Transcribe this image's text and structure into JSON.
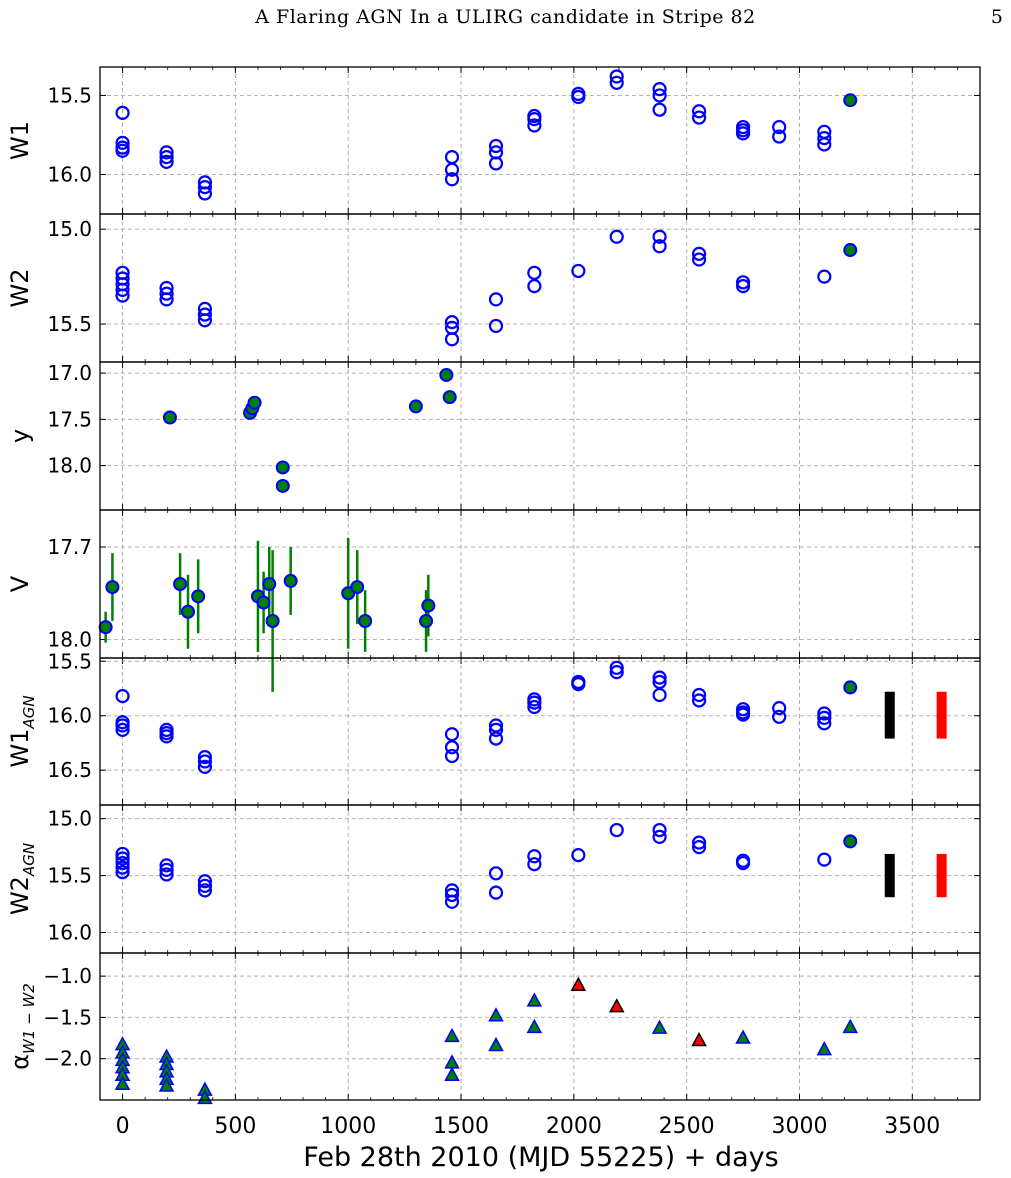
{
  "page": {
    "running_head": "A Flaring AGN In a ULIRG candidate in Stripe 82",
    "page_number": "5"
  },
  "chart_data": {
    "type": "scatter",
    "xlabel": "Feb 28th 2010 (MJD 55225) + days",
    "xlim": [
      -100,
      3800
    ],
    "xticks": [
      0,
      500,
      1000,
      1500,
      2000,
      2500,
      3000,
      3500
    ],
    "grid": true,
    "colors": {
      "open_marker": "#0000ff",
      "filled_marker": "#008000",
      "triangle_face": "#008000",
      "triangle_face_alt": "#ff0000",
      "errorbar": "#008000",
      "bar_black": "#000000",
      "bar_red": "#ff0000"
    },
    "panels": [
      {
        "ylabel": "W1",
        "ylabel_sub": "",
        "ylim": [
          16.25,
          15.32
        ],
        "yticks": [
          "15.5",
          "16.0"
        ],
        "open_circles": [
          [
            0,
            15.61
          ],
          [
            0,
            15.8
          ],
          [
            0,
            15.83
          ],
          [
            0,
            15.85
          ],
          [
            195,
            15.86
          ],
          [
            195,
            15.89
          ],
          [
            195,
            15.92
          ],
          [
            365,
            16.05
          ],
          [
            365,
            16.08
          ],
          [
            365,
            16.12
          ],
          [
            1460,
            15.89
          ],
          [
            1460,
            15.97
          ],
          [
            1460,
            16.03
          ],
          [
            1655,
            15.82
          ],
          [
            1655,
            15.86
          ],
          [
            1655,
            15.93
          ],
          [
            1825,
            15.63
          ],
          [
            1825,
            15.65
          ],
          [
            1825,
            15.69
          ],
          [
            2020,
            15.49
          ],
          [
            2020,
            15.51
          ],
          [
            2190,
            15.38
          ],
          [
            2190,
            15.42
          ],
          [
            2380,
            15.46
          ],
          [
            2380,
            15.5
          ],
          [
            2380,
            15.59
          ],
          [
            2555,
            15.6
          ],
          [
            2555,
            15.64
          ],
          [
            2750,
            15.7
          ],
          [
            2750,
            15.72
          ],
          [
            2750,
            15.74
          ],
          [
            2910,
            15.7
          ],
          [
            2910,
            15.76
          ],
          [
            3110,
            15.73
          ],
          [
            3110,
            15.77
          ],
          [
            3110,
            15.81
          ]
        ],
        "filled_circles": [
          [
            3225,
            15.53
          ]
        ],
        "error_points": [],
        "bars": [],
        "triangles": []
      },
      {
        "ylabel": "W2",
        "ylabel_sub": "",
        "ylim": [
          15.7,
          14.92
        ],
        "yticks": [
          "15.0",
          "15.5"
        ],
        "open_circles": [
          [
            0,
            15.23
          ],
          [
            0,
            15.26
          ],
          [
            0,
            15.29
          ],
          [
            0,
            15.32
          ],
          [
            0,
            15.35
          ],
          [
            195,
            15.31
          ],
          [
            195,
            15.34
          ],
          [
            195,
            15.37
          ],
          [
            365,
            15.42
          ],
          [
            365,
            15.45
          ],
          [
            365,
            15.48
          ],
          [
            1460,
            15.49
          ],
          [
            1460,
            15.52
          ],
          [
            1460,
            15.58
          ],
          [
            1655,
            15.37
          ],
          [
            1655,
            15.51
          ],
          [
            1825,
            15.23
          ],
          [
            1825,
            15.3
          ],
          [
            2020,
            15.22
          ],
          [
            2190,
            15.04
          ],
          [
            2380,
            15.04
          ],
          [
            2380,
            15.09
          ],
          [
            2555,
            15.13
          ],
          [
            2555,
            15.16
          ],
          [
            2750,
            15.28
          ],
          [
            2750,
            15.3
          ],
          [
            3110,
            15.25
          ]
        ],
        "filled_circles": [
          [
            3225,
            15.11
          ]
        ],
        "error_points": [],
        "bars": [],
        "triangles": []
      },
      {
        "ylabel": "y",
        "ylabel_sub": "",
        "ylim": [
          18.48,
          16.88
        ],
        "yticks": [
          "17.0",
          "17.5",
          "18.0"
        ],
        "open_circles": [],
        "filled_circles": [
          [
            210,
            17.48
          ],
          [
            565,
            17.43
          ],
          [
            575,
            17.38
          ],
          [
            585,
            17.32
          ],
          [
            710,
            18.02
          ],
          [
            710,
            18.22
          ],
          [
            1300,
            17.36
          ],
          [
            1435,
            17.02
          ],
          [
            1450,
            17.26
          ]
        ],
        "error_points": [],
        "bars": [],
        "triangles": []
      },
      {
        "ylabel": "V",
        "ylabel_sub": "",
        "ylim": [
          18.06,
          17.58
        ],
        "yticks": [
          "17.7",
          "18.0"
        ],
        "open_circles": [],
        "filled_circles": [],
        "error_points": [
          [
            -75,
            17.96,
            0.05
          ],
          [
            -45,
            17.83,
            0.11
          ],
          [
            255,
            17.82,
            0.1
          ],
          [
            290,
            17.91,
            0.12
          ],
          [
            335,
            17.86,
            0.12
          ],
          [
            600,
            17.86,
            0.18
          ],
          [
            625,
            17.88,
            0.1
          ],
          [
            650,
            17.82,
            0.12
          ],
          [
            665,
            17.94,
            0.23
          ],
          [
            745,
            17.81,
            0.11
          ],
          [
            1000,
            17.85,
            0.18
          ],
          [
            1040,
            17.83,
            0.12
          ],
          [
            1075,
            17.94,
            0.1
          ],
          [
            1345,
            17.94,
            0.1
          ],
          [
            1355,
            17.89,
            0.1
          ]
        ],
        "bars": [],
        "triangles": []
      },
      {
        "ylabel": "W1",
        "ylabel_sub": "AGN",
        "ylim": [
          16.82,
          15.47
        ],
        "yticks": [
          "15.5",
          "16.0",
          "16.5"
        ],
        "open_circles": [
          [
            0,
            15.82
          ],
          [
            0,
            16.06
          ],
          [
            0,
            16.09
          ],
          [
            0,
            16.13
          ],
          [
            195,
            16.13
          ],
          [
            195,
            16.16
          ],
          [
            195,
            16.19
          ],
          [
            365,
            16.38
          ],
          [
            365,
            16.42
          ],
          [
            365,
            16.47
          ],
          [
            1460,
            16.17
          ],
          [
            1460,
            16.29
          ],
          [
            1460,
            16.37
          ],
          [
            1655,
            16.09
          ],
          [
            1655,
            16.13
          ],
          [
            1655,
            16.21
          ],
          [
            1825,
            15.85
          ],
          [
            1825,
            15.88
          ],
          [
            1825,
            15.92
          ],
          [
            2020,
            15.69
          ],
          [
            2020,
            15.71
          ],
          [
            2190,
            15.56
          ],
          [
            2190,
            15.6
          ],
          [
            2380,
            15.65
          ],
          [
            2380,
            15.69
          ],
          [
            2380,
            15.81
          ],
          [
            2555,
            15.81
          ],
          [
            2555,
            15.86
          ],
          [
            2750,
            15.94
          ],
          [
            2750,
            15.97
          ],
          [
            2750,
            15.99
          ],
          [
            2910,
            15.93
          ],
          [
            2910,
            16.01
          ],
          [
            3110,
            15.98
          ],
          [
            3110,
            16.02
          ],
          [
            3110,
            16.07
          ]
        ],
        "filled_circles": [
          [
            3225,
            15.74
          ]
        ],
        "error_points": [],
        "bars": [
          {
            "x": 3400,
            "y1": 15.78,
            "y2": 16.21,
            "color": "#000000"
          },
          {
            "x": 3630,
            "y1": 15.78,
            "y2": 16.21,
            "color": "#ff0000"
          }
        ],
        "triangles": []
      },
      {
        "ylabel": "W2",
        "ylabel_sub": "AGN",
        "ylim": [
          16.18,
          14.88
        ],
        "yticks": [
          "15.0",
          "15.5",
          "16.0"
        ],
        "open_circles": [
          [
            0,
            15.31
          ],
          [
            0,
            15.35
          ],
          [
            0,
            15.39
          ],
          [
            0,
            15.43
          ],
          [
            0,
            15.47
          ],
          [
            195,
            15.41
          ],
          [
            195,
            15.45
          ],
          [
            195,
            15.49
          ],
          [
            365,
            15.55
          ],
          [
            365,
            15.59
          ],
          [
            365,
            15.63
          ],
          [
            1460,
            15.63
          ],
          [
            1460,
            15.67
          ],
          [
            1460,
            15.73
          ],
          [
            1655,
            15.48
          ],
          [
            1655,
            15.65
          ],
          [
            1825,
            15.33
          ],
          [
            1825,
            15.4
          ],
          [
            2020,
            15.32
          ],
          [
            2190,
            15.1
          ],
          [
            2380,
            15.1
          ],
          [
            2380,
            15.16
          ],
          [
            2555,
            15.21
          ],
          [
            2555,
            15.25
          ],
          [
            2750,
            15.37
          ],
          [
            2750,
            15.39
          ],
          [
            3110,
            15.36
          ]
        ],
        "filled_circles": [
          [
            3225,
            15.2
          ]
        ],
        "error_points": [],
        "bars": [
          {
            "x": 3400,
            "y1": 15.31,
            "y2": 15.69,
            "color": "#000000"
          },
          {
            "x": 3630,
            "y1": 15.31,
            "y2": 15.69,
            "color": "#ff0000"
          }
        ],
        "triangles": []
      },
      {
        "ylabel": "α",
        "ylabel_sub": "W1 − W2",
        "ylim": [
          -2.5,
          -0.72
        ],
        "yticks": [
          "−1.0",
          "−1.5",
          "−2.0"
        ],
        "open_circles": [],
        "filled_circles": [],
        "error_points": [],
        "bars": [],
        "triangles": [
          [
            0,
            -1.83,
            "g"
          ],
          [
            0,
            -1.93,
            "g"
          ],
          [
            0,
            -2.02,
            "g"
          ],
          [
            0,
            -2.11,
            "g"
          ],
          [
            0,
            -2.2,
            "g"
          ],
          [
            0,
            -2.31,
            "g"
          ],
          [
            195,
            -1.98,
            "g"
          ],
          [
            195,
            -2.07,
            "g"
          ],
          [
            195,
            -2.16,
            "g"
          ],
          [
            195,
            -2.25,
            "g"
          ],
          [
            195,
            -2.33,
            "g"
          ],
          [
            365,
            -2.38,
            "g"
          ],
          [
            365,
            -2.48,
            "g"
          ],
          [
            1460,
            -1.73,
            "g"
          ],
          [
            1460,
            -2.05,
            "g"
          ],
          [
            1460,
            -2.2,
            "g"
          ],
          [
            1655,
            -1.48,
            "g"
          ],
          [
            1655,
            -1.84,
            "g"
          ],
          [
            1825,
            -1.3,
            "g"
          ],
          [
            1825,
            -1.62,
            "g"
          ],
          [
            2020,
            -1.11,
            "r"
          ],
          [
            2190,
            -1.37,
            "r"
          ],
          [
            2380,
            -1.63,
            "g"
          ],
          [
            2555,
            -1.78,
            "r"
          ],
          [
            2750,
            -1.75,
            "g"
          ],
          [
            3110,
            -1.89,
            "g"
          ],
          [
            3225,
            -1.62,
            "g"
          ]
        ]
      }
    ]
  }
}
